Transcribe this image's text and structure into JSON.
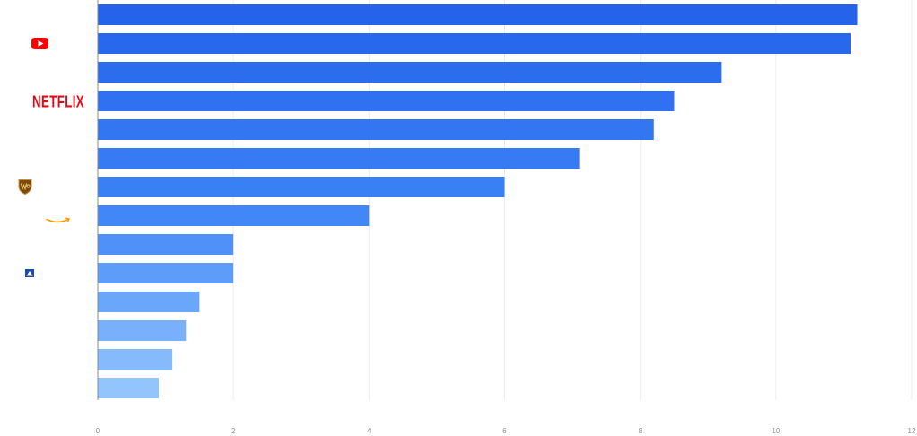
{
  "chart_data": {
    "type": "bar",
    "orientation": "horizontal",
    "title": "",
    "xlabel": "",
    "ylabel": "",
    "xlim": [
      0,
      12
    ],
    "x_ticks": [
      0,
      2,
      4,
      6,
      8,
      10,
      12
    ],
    "grid": true,
    "categories": [
      {
        "logo": "unlabeled-logo"
      },
      {
        "logo": "youtube-logo"
      },
      {
        "logo": "unlabeled-logo"
      },
      {
        "logo": "netflix-logo",
        "text": "NETFLIX"
      },
      {
        "logo": "unlabeled-logo"
      },
      {
        "logo": "unlabeled-logo"
      },
      {
        "logo": "warner-bros-logo"
      },
      {
        "logo": "amazon-logo"
      },
      {
        "logo": "unlabeled-logo"
      },
      {
        "logo": "paramount-logo"
      },
      {
        "logo": "unlabeled-logo"
      },
      {
        "logo": "unlabeled-logo"
      },
      {
        "logo": "unlabeled-logo"
      },
      {
        "logo": "unlabeled-logo"
      }
    ],
    "values": [
      11.2,
      11.1,
      9.2,
      8.5,
      8.2,
      7.1,
      6.0,
      4.0,
      2.0,
      2.0,
      1.5,
      1.3,
      1.1,
      0.9
    ],
    "bar_colors": [
      "#2563eb",
      "#3b82f6",
      "#93c5fd"
    ]
  }
}
